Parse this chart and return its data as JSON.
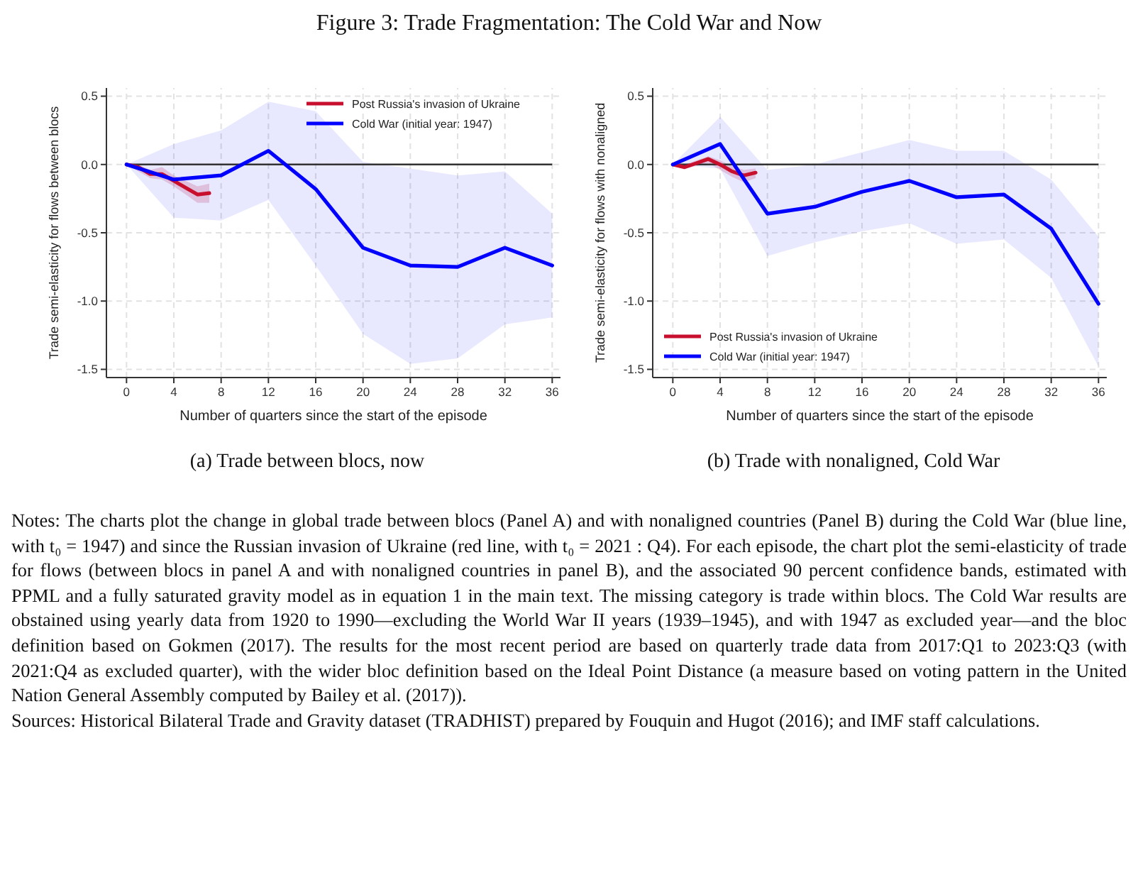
{
  "chart_data": [
    {
      "type": "line",
      "title": "Figure 3: Trade Fragmentation: The Cold War and Now",
      "subtitle": "(a)  Trade between blocs, now",
      "xlabel": "Number of quarters since the start of the episode",
      "ylabel": "Trade semi-elasticity for flows between blocs",
      "series": [
        {
          "name": "Post Russia's invasion of Ukraine",
          "color": "#c8102e",
          "x": [
            0,
            1,
            2,
            3,
            4,
            5,
            6,
            7
          ],
          "values": [
            0,
            -0.02,
            -0.07,
            -0.07,
            -0.12,
            -0.17,
            -0.22,
            -0.21
          ],
          "lower": [
            0,
            -0.05,
            -0.1,
            -0.11,
            -0.16,
            -0.22,
            -0.28,
            -0.28
          ],
          "upper": [
            0,
            0.0,
            -0.04,
            -0.02,
            -0.08,
            -0.12,
            -0.16,
            -0.14
          ]
        },
        {
          "name": "Cold War (initial year: 1947)",
          "color": "#0000ff",
          "x": [
            0,
            4,
            8,
            12,
            16,
            20,
            24,
            28,
            32,
            36
          ],
          "values": [
            0,
            -0.11,
            -0.08,
            0.1,
            -0.18,
            -0.61,
            -0.74,
            -0.75,
            -0.61,
            -0.74
          ],
          "lower": [
            0,
            -0.39,
            -0.41,
            -0.26,
            -0.74,
            -1.24,
            -1.46,
            -1.42,
            -1.17,
            -1.12
          ],
          "upper": [
            0,
            0.15,
            0.25,
            0.46,
            0.39,
            0.02,
            -0.03,
            -0.08,
            -0.05,
            -0.36
          ]
        }
      ],
      "xlim": [
        -1.7,
        36.7
      ],
      "xticks": [
        0,
        4,
        8,
        12,
        16,
        20,
        24,
        28,
        32,
        36
      ],
      "ylim": [
        -1.56,
        0.56
      ],
      "yticks": [
        {
          "value": 0.5,
          "label": "0.5"
        },
        {
          "value": 0,
          "label": "0.0"
        },
        {
          "value": -0.5,
          "label": "-0.5"
        },
        {
          "value": -1,
          "label": "-1.0"
        },
        {
          "value": -1.5,
          "label": "-1.5"
        }
      ],
      "ref_lines": [
        {
          "axis": "y",
          "value": 0,
          "color": "#333333"
        }
      ],
      "grid": true,
      "legend": "top right",
      "line_style": "solid",
      "annotations": [
        "Notes: The charts plot the change in global trade between blocs (Panel A) and with nonaligned countries (Panel B) during the Cold War (blue line, with t₀ = 1947) and since the Russian invasion of Ukraine (red line, with t₀ = 2021 : Q4). For each episode, the chart plot the semi-elasticity of trade for flows (between blocs in panel A and with nonaligned countries in panel B), and the associated 90 percent confidence bands, estimated with PPML and a fully saturated gravity model as in equation 1 in the main text.  The missing category is trade within blocs.  The Cold War results are obstained using yearly data from 1920 to 1990—excluding the World War II years (1939–1945), and with 1947 as excluded year—and the bloc definition based on Gokmen (2017).  The results for the most recent period are based on quarterly trade data from 2017:Q1 to 2023:Q3 (with 2021:Q4 as excluded quarter), with the wider bloc definition based on the Ideal Point Distance (a measure based on voting pattern in the United Nation General Assembly computed by Bailey et al. (2017)).",
        "Sources: Historical Bilateral Trade and Gravity dataset (TRADHIST) prepared by Fouquin and Hugot (2016); and IMF staff calculations."
      ]
    },
    {
      "type": "line",
      "subtitle": "(b)  Trade with nonaligned, Cold War",
      "xlabel": "Number of quarters since the start of the episode",
      "ylabel": "Trade semi-elasticity for flows with nonaligned",
      "series": [
        {
          "name": "Post Russia's invasion of Ukraine",
          "color": "#c8102e",
          "x": [
            0,
            1,
            2,
            3,
            4,
            5,
            6,
            7
          ],
          "values": [
            0,
            -0.02,
            0.01,
            0.04,
            0.0,
            -0.05,
            -0.08,
            -0.06
          ],
          "lower": [
            0,
            -0.03,
            -0.01,
            0.01,
            -0.04,
            -0.09,
            -0.13,
            -0.1
          ],
          "upper": [
            0,
            0.0,
            0.03,
            0.06,
            0.03,
            -0.01,
            -0.04,
            -0.03
          ]
        },
        {
          "name": "Cold War (initial year: 1947)",
          "color": "#0000ff",
          "x": [
            0,
            4,
            8,
            12,
            16,
            20,
            24,
            28,
            32,
            36
          ],
          "values": [
            0,
            0.15,
            -0.36,
            -0.31,
            -0.2,
            -0.12,
            -0.24,
            -0.22,
            -0.47,
            -1.02
          ],
          "lower": [
            0,
            -0.03,
            -0.67,
            -0.57,
            -0.49,
            -0.43,
            -0.58,
            -0.55,
            -0.83,
            -1.48
          ],
          "upper": [
            0,
            0.35,
            -0.04,
            0.0,
            0.09,
            0.18,
            0.1,
            0.1,
            -0.11,
            -0.53
          ]
        }
      ],
      "xlim": [
        -1.7,
        36.7
      ],
      "xticks": [
        0,
        4,
        8,
        12,
        16,
        20,
        24,
        28,
        32,
        36
      ],
      "ylim": [
        -1.56,
        0.56
      ],
      "yticks": [
        {
          "value": 0.5,
          "label": "0.5"
        },
        {
          "value": 0,
          "label": "0.0"
        },
        {
          "value": -0.5,
          "label": "-0.5"
        },
        {
          "value": -1,
          "label": "-1.0"
        },
        {
          "value": -1.5,
          "label": "-1.5"
        }
      ],
      "ref_lines": [
        {
          "axis": "y",
          "value": 0,
          "color": "#333333"
        }
      ],
      "grid": true,
      "legend": "bottom left",
      "line_style": "solid"
    }
  ]
}
